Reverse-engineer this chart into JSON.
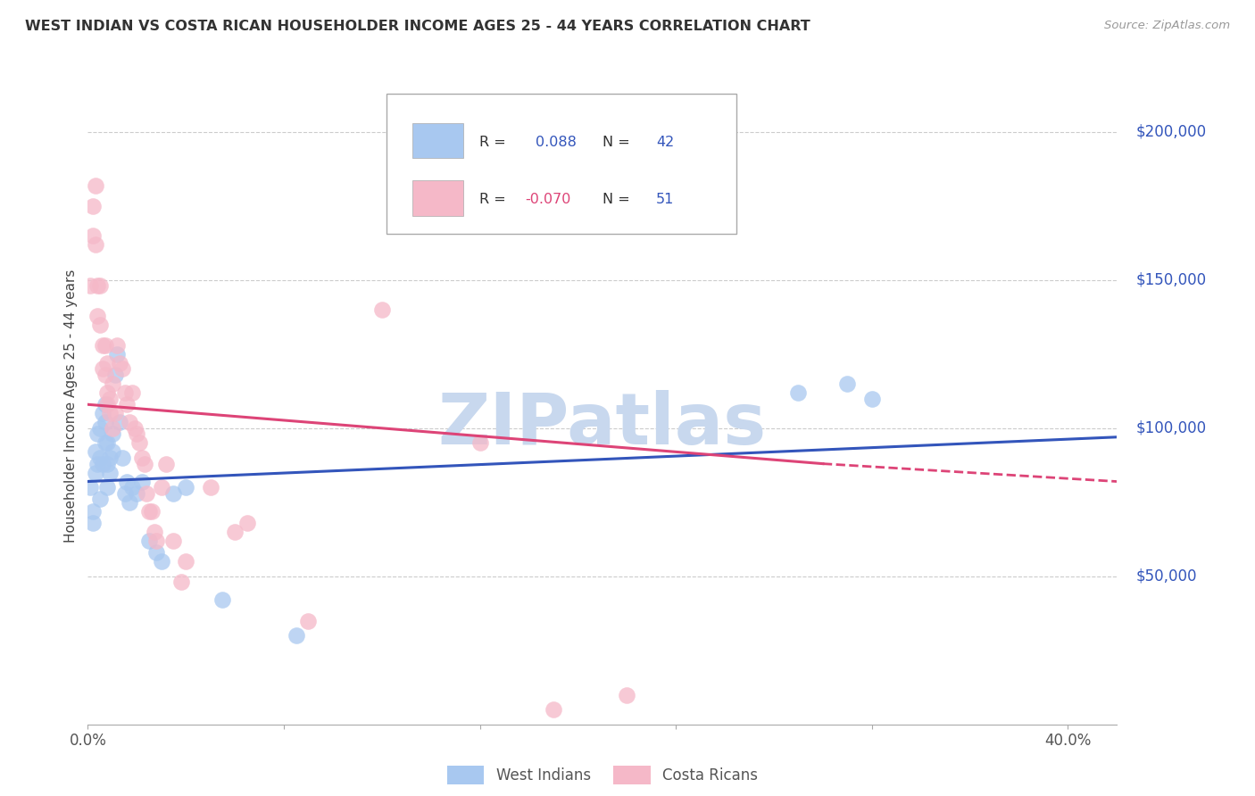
{
  "title": "WEST INDIAN VS COSTA RICAN HOUSEHOLDER INCOME AGES 25 - 44 YEARS CORRELATION CHART",
  "source": "Source: ZipAtlas.com",
  "ylabel": "Householder Income Ages 25 - 44 years",
  "y_tick_labels": [
    "$50,000",
    "$100,000",
    "$150,000",
    "$200,000"
  ],
  "y_tick_values": [
    50000,
    100000,
    150000,
    200000
  ],
  "legend_blue_label": "West Indians",
  "legend_pink_label": "Costa Ricans",
  "blue_color": "#a8c8f0",
  "blue_line_color": "#3355bb",
  "pink_color": "#f5b8c8",
  "pink_line_color": "#dd4477",
  "grid_color": "#cccccc",
  "watermark_color": "#c8d8ee",
  "blue_scatter_x": [
    0.001,
    0.002,
    0.002,
    0.003,
    0.003,
    0.004,
    0.004,
    0.005,
    0.005,
    0.005,
    0.006,
    0.006,
    0.007,
    0.007,
    0.007,
    0.008,
    0.008,
    0.008,
    0.009,
    0.009,
    0.01,
    0.01,
    0.011,
    0.012,
    0.013,
    0.014,
    0.015,
    0.016,
    0.017,
    0.018,
    0.02,
    0.022,
    0.025,
    0.028,
    0.03,
    0.035,
    0.04,
    0.055,
    0.085,
    0.29,
    0.31,
    0.32
  ],
  "blue_scatter_y": [
    80000,
    72000,
    68000,
    85000,
    92000,
    98000,
    88000,
    76000,
    100000,
    90000,
    105000,
    88000,
    95000,
    102000,
    108000,
    95000,
    88000,
    80000,
    90000,
    85000,
    92000,
    98000,
    118000,
    125000,
    102000,
    90000,
    78000,
    82000,
    75000,
    80000,
    78000,
    82000,
    62000,
    58000,
    55000,
    78000,
    80000,
    42000,
    30000,
    112000,
    115000,
    110000
  ],
  "pink_scatter_x": [
    0.001,
    0.002,
    0.002,
    0.003,
    0.003,
    0.004,
    0.004,
    0.005,
    0.005,
    0.006,
    0.006,
    0.007,
    0.007,
    0.008,
    0.008,
    0.008,
    0.009,
    0.009,
    0.01,
    0.01,
    0.011,
    0.012,
    0.013,
    0.014,
    0.015,
    0.016,
    0.017,
    0.018,
    0.019,
    0.02,
    0.021,
    0.022,
    0.023,
    0.024,
    0.025,
    0.026,
    0.027,
    0.028,
    0.03,
    0.032,
    0.035,
    0.038,
    0.04,
    0.05,
    0.06,
    0.065,
    0.09,
    0.12,
    0.16,
    0.19,
    0.22
  ],
  "pink_scatter_y": [
    148000,
    165000,
    175000,
    182000,
    162000,
    148000,
    138000,
    148000,
    135000,
    128000,
    120000,
    118000,
    128000,
    112000,
    122000,
    108000,
    110000,
    105000,
    115000,
    100000,
    105000,
    128000,
    122000,
    120000,
    112000,
    108000,
    102000,
    112000,
    100000,
    98000,
    95000,
    90000,
    88000,
    78000,
    72000,
    72000,
    65000,
    62000,
    80000,
    88000,
    62000,
    48000,
    55000,
    80000,
    65000,
    68000,
    35000,
    140000,
    95000,
    5000,
    10000
  ],
  "xlim": [
    0.0,
    0.42
  ],
  "ylim": [
    0,
    215000
  ],
  "blue_trend": [
    0.0,
    0.42,
    82000,
    97000
  ],
  "pink_trend_solid": [
    0.0,
    0.3,
    108000,
    88000
  ],
  "pink_trend_dash": [
    0.3,
    0.42,
    88000,
    82000
  ],
  "xtick_positions": [
    0.0,
    0.08,
    0.16,
    0.24,
    0.32,
    0.4
  ],
  "xtick_labels": [
    "0.0%",
    "",
    "",
    "",
    "",
    "40.0%"
  ]
}
